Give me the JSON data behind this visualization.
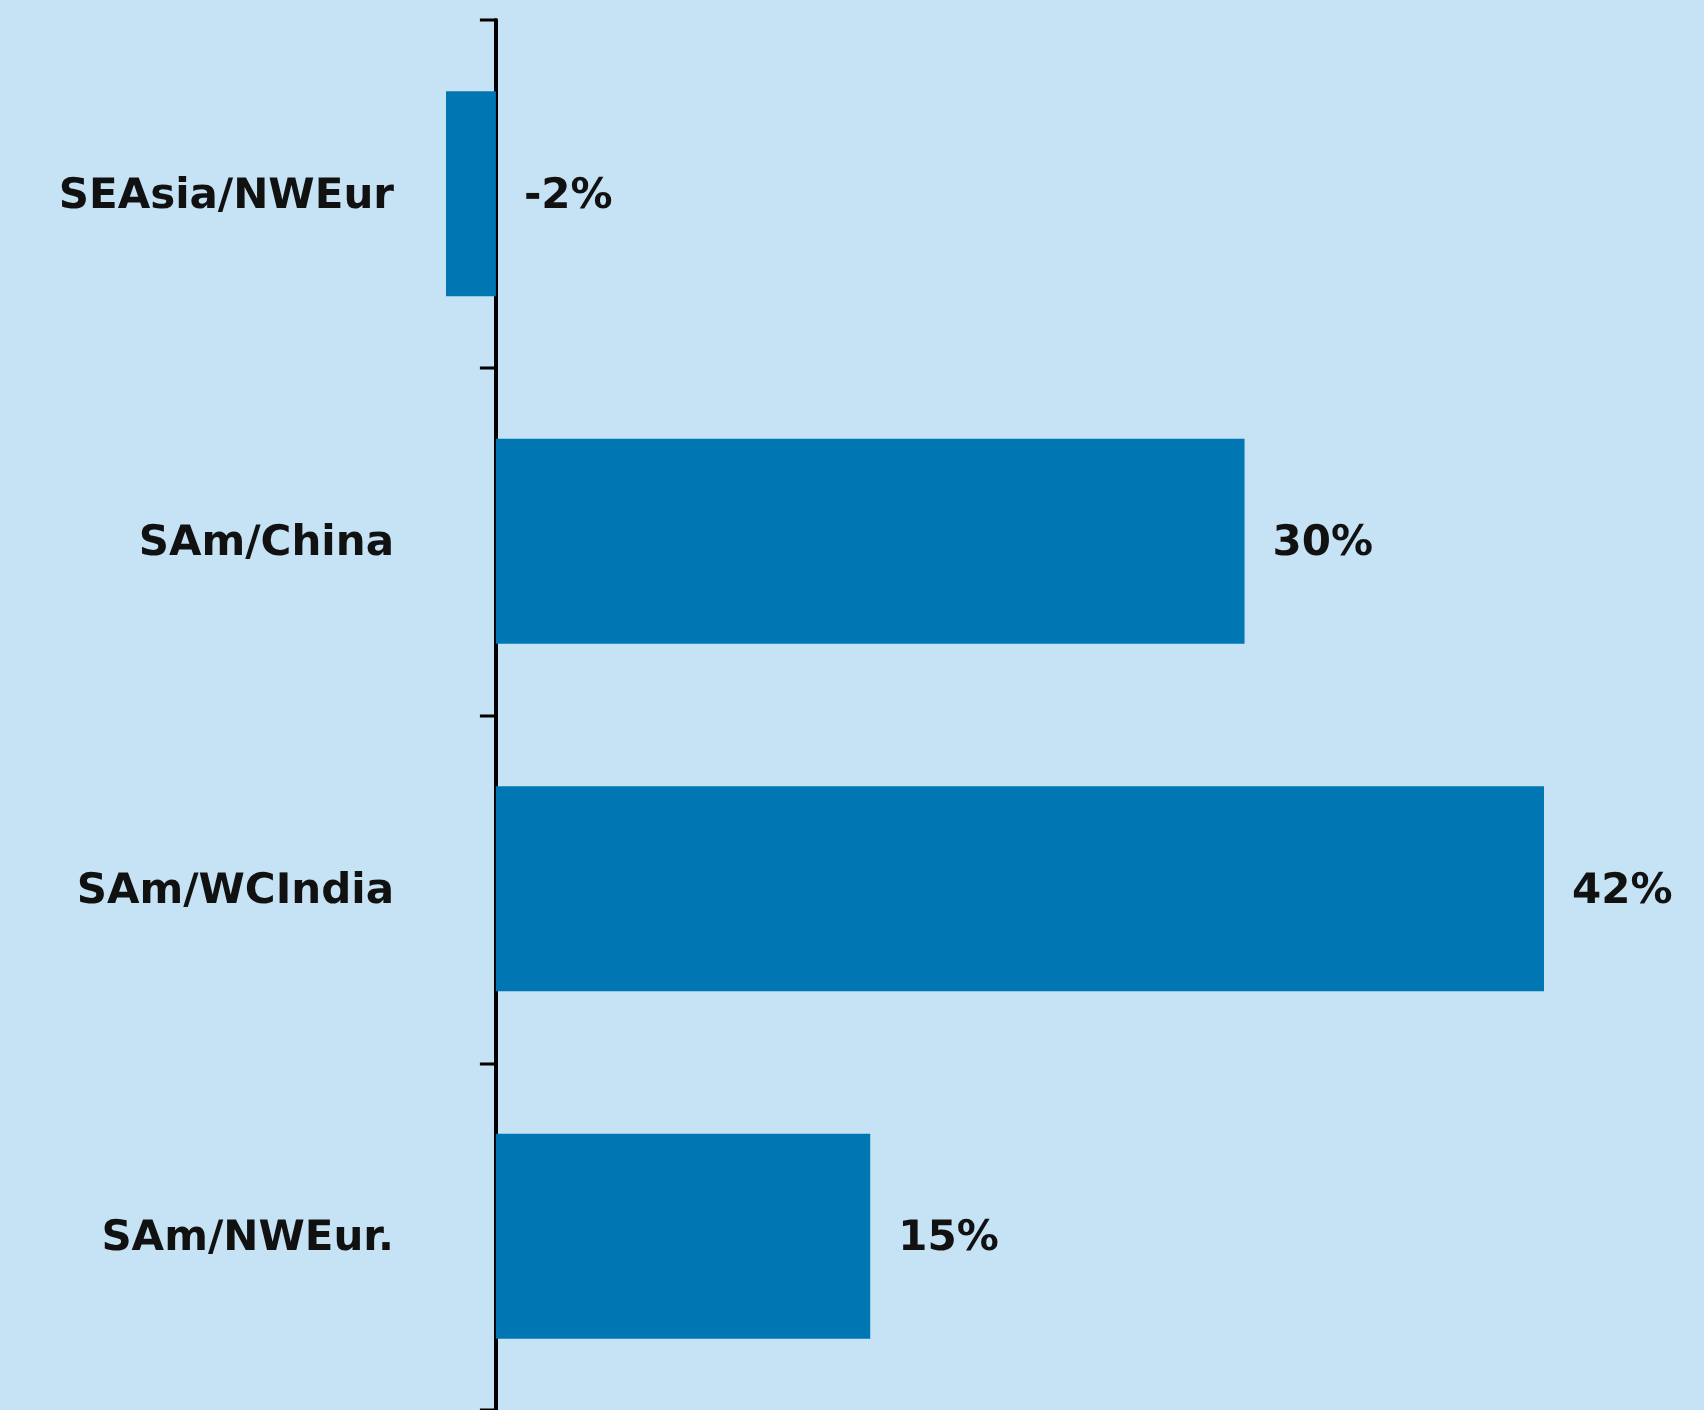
{
  "chart_data": {
    "type": "bar",
    "orientation": "horizontal",
    "categories": [
      "SEAsia/NWEur",
      "SAm/China",
      "SAm/WCIndia",
      "SAm/NWEur."
    ],
    "values": [
      -2,
      30,
      42,
      15
    ],
    "value_labels": [
      "-2%",
      "30%",
      "42%",
      "15%"
    ],
    "color": "#0077b3"
  }
}
